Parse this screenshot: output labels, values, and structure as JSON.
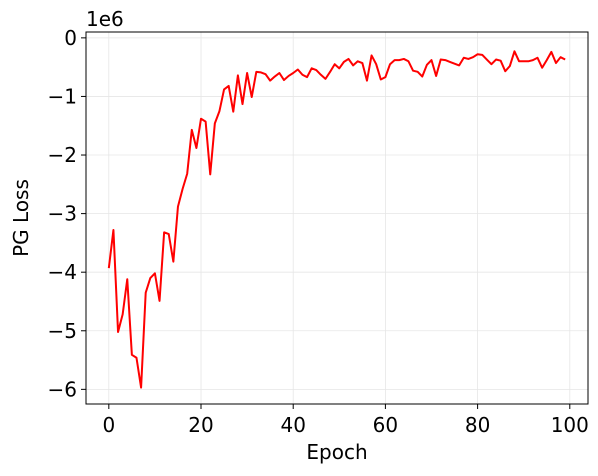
{
  "chart_data": {
    "type": "line",
    "xlabel": "Epoch",
    "ylabel": "PG Loss",
    "y_offset_text": "1e6",
    "y_multiplier": 1000000,
    "xlim": [
      -4.95,
      103.95
    ],
    "ylim": [
      -6.25,
      0.1
    ],
    "x_ticks": [
      0,
      20,
      40,
      60,
      80,
      100
    ],
    "x_tick_labels": [
      "0",
      "20",
      "40",
      "60",
      "80",
      "100"
    ],
    "y_ticks": [
      0,
      -1,
      -2,
      -3,
      -4,
      -5,
      -6
    ],
    "y_tick_labels": [
      "0",
      "−1",
      "−2",
      "−3",
      "−4",
      "−5",
      "−6"
    ],
    "grid": true,
    "series": [
      {
        "color": "#ff0000",
        "x": [
          0,
          1,
          2,
          3,
          4,
          5,
          6,
          7,
          8,
          9,
          10,
          11,
          12,
          13,
          14,
          15,
          16,
          17,
          18,
          19,
          20,
          21,
          22,
          23,
          24,
          25,
          26,
          27,
          28,
          29,
          30,
          31,
          32,
          33,
          34,
          35,
          36,
          37,
          38,
          39,
          40,
          41,
          42,
          43,
          44,
          45,
          46,
          47,
          48,
          49,
          50,
          51,
          52,
          53,
          54,
          55,
          56,
          57,
          58,
          59,
          60,
          61,
          62,
          63,
          64,
          65,
          66,
          67,
          68,
          69,
          70,
          71,
          72,
          73,
          74,
          75,
          76,
          77,
          78,
          79,
          80,
          81,
          82,
          83,
          84,
          85,
          86,
          87,
          88,
          89,
          90,
          91,
          92,
          93,
          94,
          95,
          96,
          97,
          98,
          99
        ],
        "y": [
          -3.93,
          -3.28,
          -5.02,
          -4.72,
          -4.12,
          -5.41,
          -5.46,
          -5.97,
          -4.35,
          -4.1,
          -4.02,
          -4.49,
          -3.32,
          -3.35,
          -3.82,
          -2.88,
          -2.58,
          -2.32,
          -1.57,
          -1.88,
          -1.38,
          -1.43,
          -2.33,
          -1.46,
          -1.25,
          -0.88,
          -0.82,
          -1.26,
          -0.64,
          -1.13,
          -0.6,
          -1.01,
          -0.58,
          -0.59,
          -0.62,
          -0.73,
          -0.66,
          -0.6,
          -0.72,
          -0.65,
          -0.6,
          -0.54,
          -0.63,
          -0.67,
          -0.52,
          -0.55,
          -0.63,
          -0.7,
          -0.58,
          -0.45,
          -0.52,
          -0.41,
          -0.36,
          -0.47,
          -0.4,
          -0.43,
          -0.73,
          -0.3,
          -0.45,
          -0.71,
          -0.67,
          -0.45,
          -0.38,
          -0.38,
          -0.36,
          -0.4,
          -0.56,
          -0.58,
          -0.66,
          -0.46,
          -0.38,
          -0.65,
          -0.37,
          -0.38,
          -0.41,
          -0.44,
          -0.47,
          -0.34,
          -0.36,
          -0.33,
          -0.28,
          -0.29,
          -0.37,
          -0.45,
          -0.37,
          -0.39,
          -0.57,
          -0.48,
          -0.23,
          -0.4,
          -0.4,
          -0.4,
          -0.38,
          -0.34,
          -0.51,
          -0.38,
          -0.24,
          -0.43,
          -0.33,
          -0.37
        ]
      }
    ]
  }
}
